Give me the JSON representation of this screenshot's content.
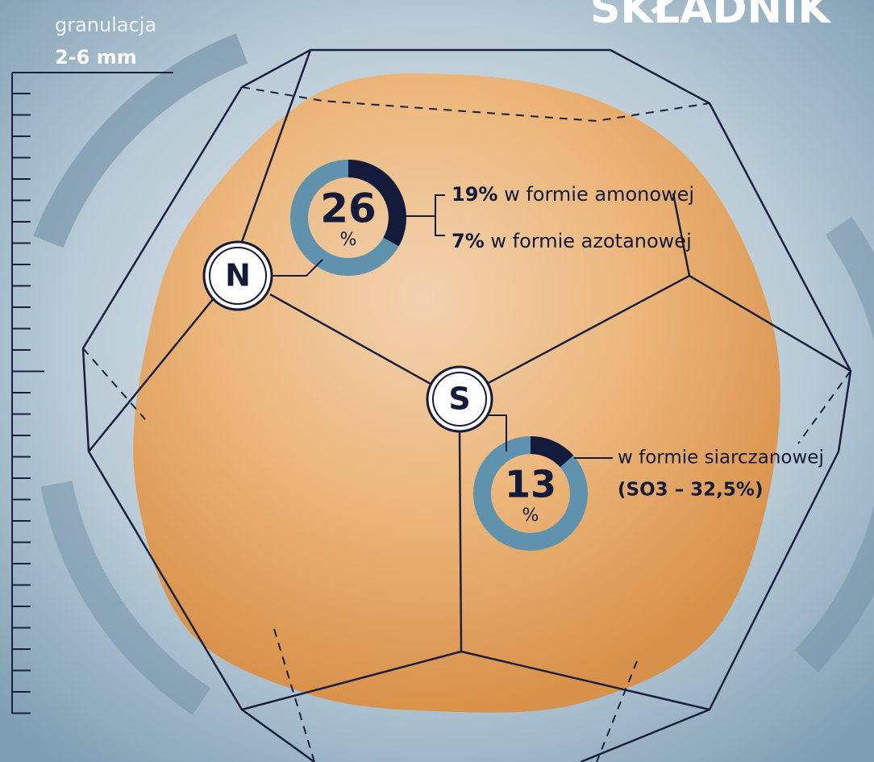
{
  "header": {
    "label": "granulacja",
    "value": "2-6 mm",
    "title": "SKŁADNIK"
  },
  "nutrients": [
    {
      "symbol": "N",
      "value": "26",
      "unit": "%",
      "details": [
        {
          "percent": "19%",
          "text": "w formie amonowej"
        },
        {
          "percent": "7%",
          "text": "w formie azotanowej"
        }
      ]
    },
    {
      "symbol": "S",
      "value": "13",
      "unit": "%",
      "details": [
        {
          "text": "w formie siarczanowej"
        },
        {
          "text": "(SO3 – 32,5%)"
        }
      ]
    }
  ]
}
